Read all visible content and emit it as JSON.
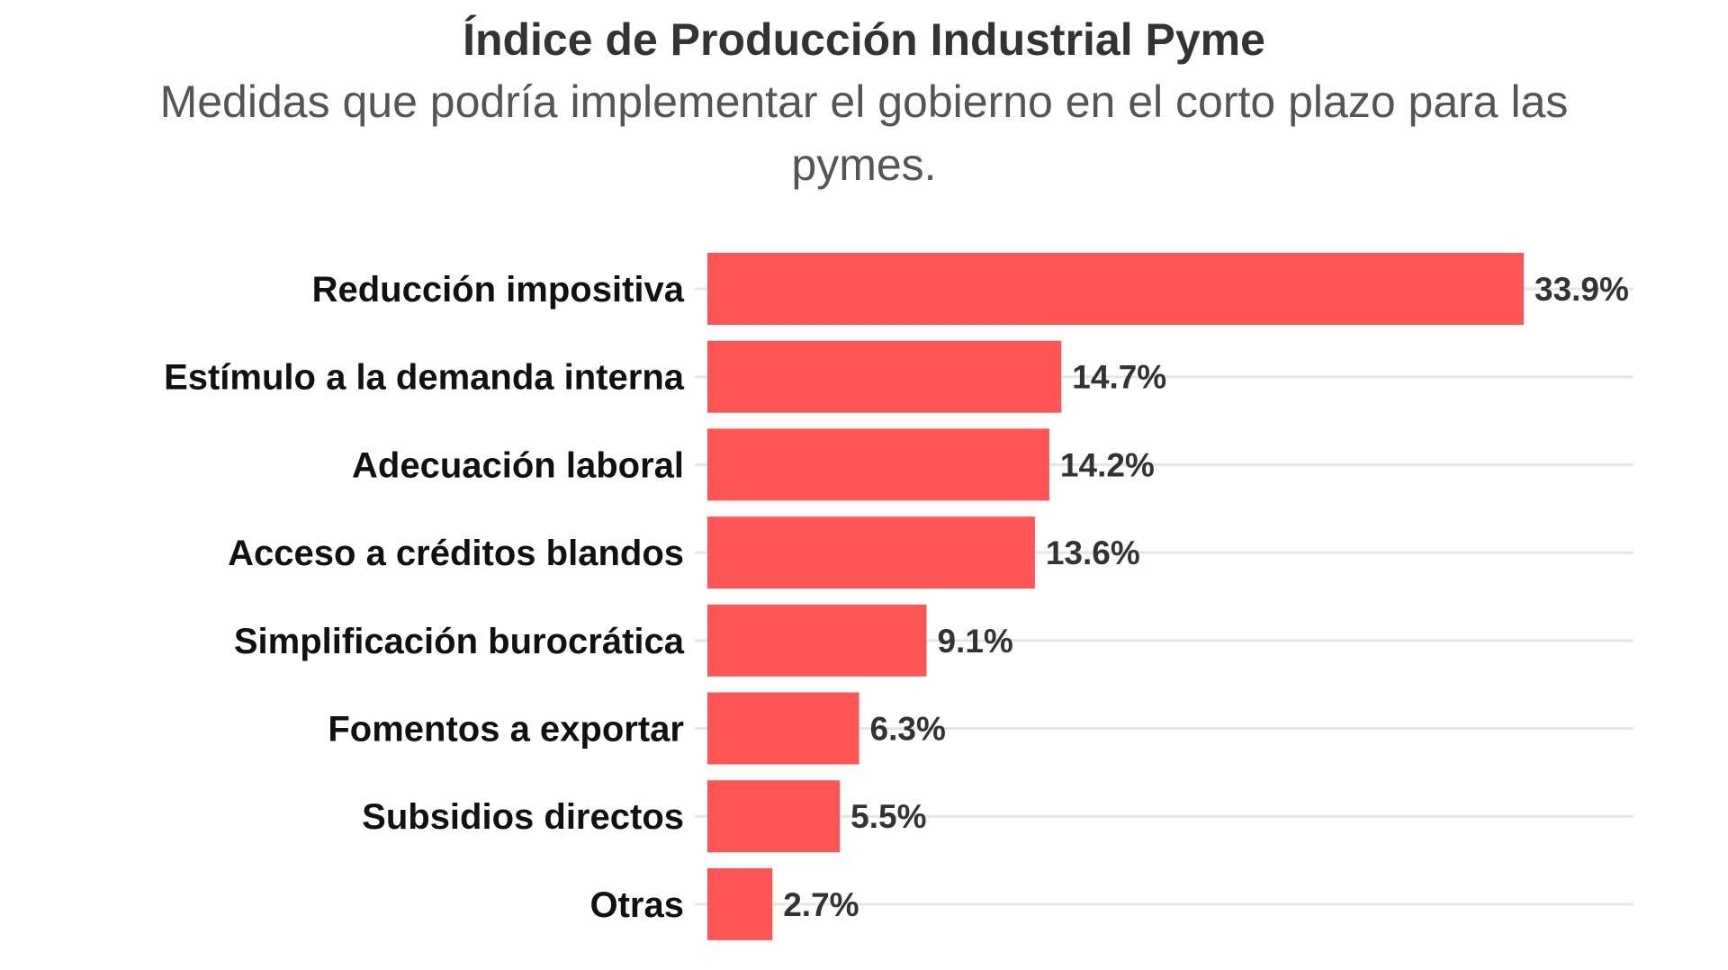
{
  "chart_data": {
    "type": "bar",
    "orientation": "horizontal",
    "title": "Índice de Producción Industrial Pyme",
    "subtitle": "Medidas que podría implementar el gobierno en el corto plazo para las pymes.",
    "categories": [
      "Reducción impositiva",
      "Estímulo a la demanda interna",
      "Adecuación laboral",
      "Acceso a créditos blandos",
      "Simplificación burocrática",
      "Fomentos a exportar",
      "Subsidios directos",
      "Otras"
    ],
    "values": [
      33.9,
      14.7,
      14.2,
      13.6,
      9.1,
      6.3,
      5.5,
      2.7
    ],
    "value_labels": [
      "33.9%",
      "14.7%",
      "14.2%",
      "13.6%",
      "9.1%",
      "6.3%",
      "5.5%",
      "2.7%"
    ],
    "unit": "%",
    "xlim": [
      0,
      38
    ],
    "grid": true,
    "bar_color": "#ff5555",
    "grid_color": "#e6e6e6"
  }
}
